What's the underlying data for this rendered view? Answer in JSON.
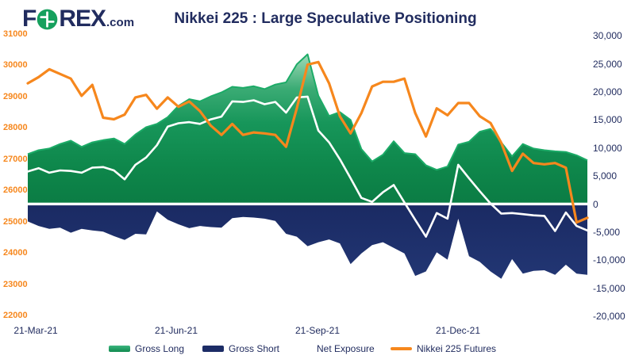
{
  "logo": {
    "f": "F",
    "rex": "REX",
    "dotcom": ".com",
    "circle_color": "#16a05d"
  },
  "title": "Nikkei 225 : Large Speculative Positioning",
  "axes": {
    "left": {
      "color": "#f6871d",
      "ticks": [
        {
          "label": "31000",
          "value": 31000
        },
        {
          "label": "30000",
          "value": 30000
        },
        {
          "label": "29000",
          "value": 29000
        },
        {
          "label": "28000",
          "value": 28000
        },
        {
          "label": "27000",
          "value": 27000
        },
        {
          "label": "26000",
          "value": 26000
        },
        {
          "label": "25000",
          "value": 25000
        },
        {
          "label": "24000",
          "value": 24000
        },
        {
          "label": "23000",
          "value": 23000
        },
        {
          "label": "22000",
          "value": 22000
        }
      ]
    },
    "right": {
      "color": "#212c5f",
      "ticks": [
        {
          "label": "30,000",
          "value": 30000
        },
        {
          "label": "25,000",
          "value": 25000
        },
        {
          "label": "20,000",
          "value": 20000
        },
        {
          "label": "15,000",
          "value": 15000
        },
        {
          "label": "10,000",
          "value": 10000
        },
        {
          "label": "5,000",
          "value": 5000
        },
        {
          "label": "0",
          "value": 0
        },
        {
          "label": "-5,000",
          "value": -5000
        },
        {
          "label": "-10,000",
          "value": -10000
        },
        {
          "label": "-15,000",
          "value": -15000
        },
        {
          "label": "-20,000",
          "value": -20000
        }
      ]
    },
    "x": {
      "labels": [
        "21-Mar-21",
        "21-Jun-21",
        "21-Sep-21",
        "21-Dec-21"
      ]
    }
  },
  "legend": {
    "items": [
      {
        "label": "Gross Long",
        "swatch": "#18a35f",
        "style": "area"
      },
      {
        "label": "Gross Short",
        "swatch": "#1c2c66",
        "style": "area"
      },
      {
        "label": "Net Exposure",
        "swatch": "#ffffff",
        "style": "line"
      },
      {
        "label": "Nikkei 225 Futures",
        "swatch": "#f6871d",
        "style": "line"
      }
    ]
  },
  "chart_data": {
    "type": "combo",
    "title": "Nikkei 225 : Large Speculative Positioning",
    "x": [
      "16-Mar-21",
      "23-Mar-21",
      "30-Mar-21",
      "6-Apr-21",
      "13-Apr-21",
      "20-Apr-21",
      "27-Apr-21",
      "4-May-21",
      "11-May-21",
      "18-May-21",
      "25-May-21",
      "1-Jun-21",
      "8-Jun-21",
      "15-Jun-21",
      "22-Jun-21",
      "29-Jun-21",
      "6-Jul-21",
      "13-Jul-21",
      "20-Jul-21",
      "27-Jul-21",
      "3-Aug-21",
      "10-Aug-21",
      "17-Aug-21",
      "24-Aug-21",
      "31-Aug-21",
      "7-Sep-21",
      "14-Sep-21",
      "21-Sep-21",
      "28-Sep-21",
      "5-Oct-21",
      "12-Oct-21",
      "19-Oct-21",
      "26-Oct-21",
      "2-Nov-21",
      "9-Nov-21",
      "16-Nov-21",
      "23-Nov-21",
      "30-Nov-21",
      "7-Dec-21",
      "14-Dec-21",
      "21-Dec-21",
      "28-Dec-21",
      "4-Jan-22",
      "11-Jan-22",
      "18-Jan-22",
      "25-Jan-22",
      "1-Feb-22",
      "8-Feb-22",
      "15-Feb-22",
      "22-Feb-22",
      "1-Mar-22",
      "8-Mar-22",
      "15-Mar-22"
    ],
    "left_axis_range": [
      22000,
      31000
    ],
    "right_axis_range": [
      -20000,
      30000
    ],
    "legend_position": "bottom",
    "grid": false,
    "series": [
      {
        "name": "Gross Long",
        "type": "area",
        "axis": "right",
        "color": "#0f8a4e",
        "values": [
          8900,
          9600,
          9900,
          10700,
          11300,
          10200,
          11000,
          11400,
          11700,
          10700,
          12400,
          13700,
          14300,
          15500,
          17500,
          18700,
          18300,
          19200,
          19900,
          20900,
          20700,
          21000,
          20500,
          21300,
          21700,
          24900,
          26700,
          19300,
          15700,
          16400,
          15000,
          9800,
          7600,
          8800,
          11200,
          9100,
          8900,
          6900,
          6100,
          6700,
          10600,
          11100,
          12900,
          13400,
          11000,
          8500,
          10700,
          9900,
          9600,
          9400,
          9300,
          8700,
          7800
        ]
      },
      {
        "name": "Gross Short",
        "type": "area",
        "axis": "right",
        "color": "#1c2c66",
        "values": [
          -3100,
          -3900,
          -4400,
          -4200,
          -5100,
          -4400,
          -4700,
          -4900,
          -5700,
          -6400,
          -5300,
          -5400,
          -1300,
          -2800,
          -3600,
          -4300,
          -3900,
          -4100,
          -4200,
          -2500,
          -2300,
          -2400,
          -2600,
          -3000,
          -5300,
          -5800,
          -7500,
          -6800,
          -6300,
          -7000,
          -10700,
          -8800,
          -7300,
          -6800,
          -7800,
          -8800,
          -12800,
          -12000,
          -8600,
          -9900,
          -2600,
          -9300,
          -10300,
          -12000,
          -13300,
          -9800,
          -12400,
          -11900,
          -11800,
          -12600,
          -10800,
          -12400,
          -12600
        ]
      },
      {
        "name": "Net Exposure",
        "type": "line",
        "axis": "right",
        "color": "#ffffff",
        "values": [
          5800,
          6400,
          5600,
          6000,
          5900,
          5600,
          6500,
          6600,
          6000,
          4400,
          7000,
          8300,
          10500,
          13800,
          14400,
          14600,
          14300,
          15100,
          15600,
          18300,
          18200,
          18500,
          17800,
          18200,
          16300,
          19000,
          19150,
          13100,
          11000,
          8000,
          4600,
          1100,
          400,
          2100,
          3400,
          300,
          -2800,
          -5800,
          -1600,
          -2600,
          7000,
          4600,
          2300,
          100,
          -1700,
          -1600,
          -1800,
          -2000,
          -2100,
          -4800,
          -1500,
          -3900,
          -4700
        ]
      },
      {
        "name": "Nikkei 225 Futures",
        "type": "line",
        "axis": "left",
        "color": "#f6871d",
        "values": [
          29450,
          29650,
          29900,
          29750,
          29600,
          29050,
          29400,
          28350,
          28300,
          28450,
          29000,
          29080,
          28640,
          29000,
          28700,
          28870,
          28560,
          28100,
          27800,
          28150,
          27800,
          27880,
          27850,
          27800,
          27420,
          28650,
          30050,
          30130,
          29450,
          28400,
          27850,
          28500,
          29350,
          29500,
          29500,
          29600,
          28500,
          27750,
          28650,
          28430,
          28820,
          28820,
          28400,
          28180,
          27550,
          26650,
          27200,
          26900,
          26860,
          26900,
          26750,
          25000,
          25150
        ]
      }
    ]
  }
}
